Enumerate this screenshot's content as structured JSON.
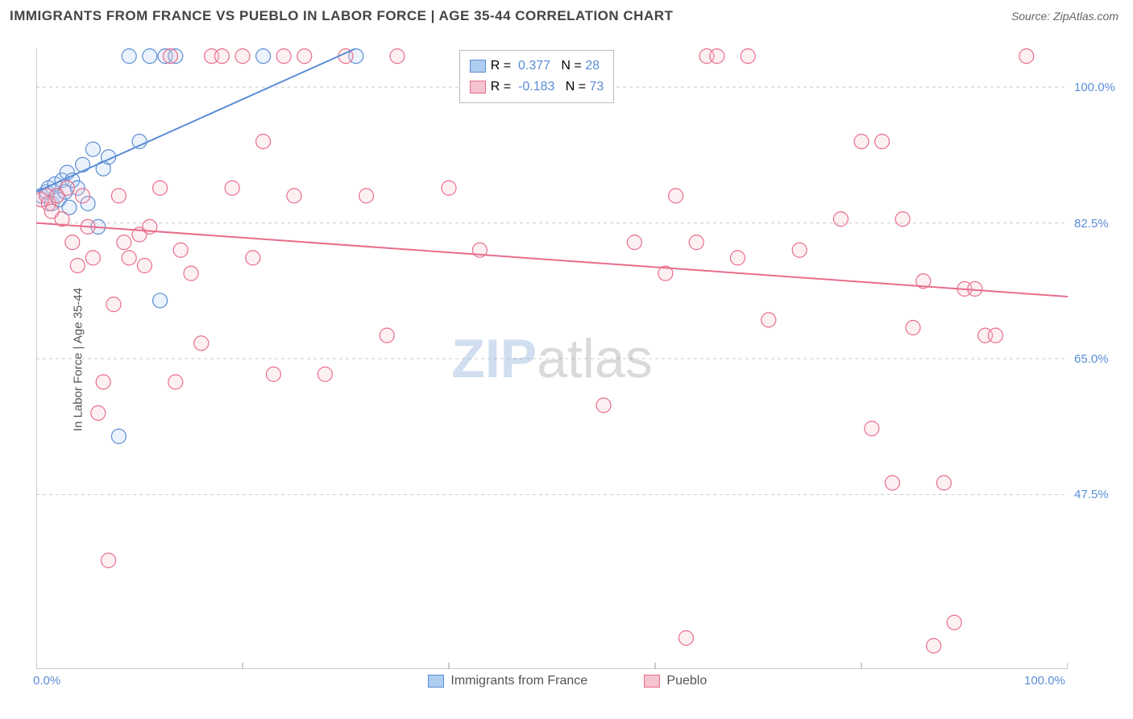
{
  "title": "IMMIGRANTS FROM FRANCE VS PUEBLO IN LABOR FORCE | AGE 35-44 CORRELATION CHART",
  "source": "Source: ZipAtlas.com",
  "y_axis_label": "In Labor Force | Age 35-44",
  "watermark_zip": "ZIP",
  "watermark_atlas": "atlas",
  "chart": {
    "type": "scatter",
    "background_color": "#ffffff",
    "grid_color": "#cccccc",
    "grid_dash": "4,4",
    "axis_color": "#999999",
    "text_color": "#555555",
    "tick_label_color": "#5a8dd6",
    "title_fontsize": 17,
    "label_fontsize": 15,
    "tick_fontsize": 15,
    "legend_fontsize": 16,
    "xlim": [
      0,
      100
    ],
    "ylim": [
      25,
      105
    ],
    "x_ticks": [
      0,
      20,
      40,
      60,
      80,
      100
    ],
    "x_tick_labels": {
      "0": "0.0%",
      "100": "100.0%"
    },
    "y_grid_lines": [
      47.5,
      65.0,
      82.5,
      100.0
    ],
    "y_tick_labels": {
      "47.5": "47.5%",
      "65.0": "65.0%",
      "82.5": "82.5%",
      "100.0": "100.0%"
    },
    "marker_radius": 9,
    "marker_stroke_width": 1.2,
    "marker_fill_opacity": 0.25,
    "trend_line_width": 2,
    "series": [
      {
        "name": "Immigrants from France",
        "color": "#5a8dd6",
        "fill": "#aecdf0",
        "R": 0.377,
        "N": 28,
        "trend": {
          "x1": 0,
          "y1": 86.5,
          "x2": 31,
          "y2": 105
        },
        "points": [
          [
            0.5,
            86
          ],
          [
            1,
            86.5
          ],
          [
            1.2,
            87
          ],
          [
            1.5,
            85
          ],
          [
            1.8,
            87.5
          ],
          [
            2,
            86
          ],
          [
            2.2,
            85.5
          ],
          [
            2.5,
            88
          ],
          [
            2.8,
            86.5
          ],
          [
            3,
            89
          ],
          [
            3.2,
            84.5
          ],
          [
            3.5,
            88
          ],
          [
            4,
            87
          ],
          [
            4.5,
            90
          ],
          [
            5,
            85
          ],
          [
            5.5,
            92
          ],
          [
            6,
            82
          ],
          [
            6.5,
            89.5
          ],
          [
            7,
            91
          ],
          [
            8,
            55
          ],
          [
            9,
            104
          ],
          [
            10,
            93
          ],
          [
            11,
            104
          ],
          [
            12,
            72.5
          ],
          [
            12.5,
            104
          ],
          [
            13.5,
            104
          ],
          [
            22,
            104
          ],
          [
            31,
            104
          ]
        ]
      },
      {
        "name": "Pueblo",
        "color": "#e86d8a",
        "fill": "#f6c3d0",
        "R": -0.183,
        "N": 73,
        "trend": {
          "x1": 0,
          "y1": 82.5,
          "x2": 100,
          "y2": 73
        },
        "points": [
          [
            0.5,
            85.5
          ],
          [
            1,
            86
          ],
          [
            1.2,
            85
          ],
          [
            1.5,
            84
          ],
          [
            2,
            86
          ],
          [
            2.5,
            83
          ],
          [
            3,
            87
          ],
          [
            3.5,
            80
          ],
          [
            4,
            77
          ],
          [
            4.5,
            86
          ],
          [
            5,
            82
          ],
          [
            5.5,
            78
          ],
          [
            6,
            58
          ],
          [
            6.5,
            62
          ],
          [
            7,
            39
          ],
          [
            7.5,
            72
          ],
          [
            8,
            86
          ],
          [
            8.5,
            80
          ],
          [
            9,
            78
          ],
          [
            10,
            81
          ],
          [
            10.5,
            77
          ],
          [
            11,
            82
          ],
          [
            12,
            87
          ],
          [
            13,
            104
          ],
          [
            13.5,
            62
          ],
          [
            14,
            79
          ],
          [
            15,
            76
          ],
          [
            16,
            67
          ],
          [
            17,
            104
          ],
          [
            18,
            104
          ],
          [
            19,
            87
          ],
          [
            20,
            104
          ],
          [
            21,
            78
          ],
          [
            22,
            93
          ],
          [
            23,
            63
          ],
          [
            24,
            104
          ],
          [
            25,
            86
          ],
          [
            26,
            104
          ],
          [
            28,
            63
          ],
          [
            30,
            104
          ],
          [
            32,
            86
          ],
          [
            34,
            68
          ],
          [
            35,
            104
          ],
          [
            40,
            87
          ],
          [
            43,
            79
          ],
          [
            55,
            59
          ],
          [
            58,
            80
          ],
          [
            61,
            76
          ],
          [
            62,
            86
          ],
          [
            63,
            29
          ],
          [
            64,
            80
          ],
          [
            65,
            104
          ],
          [
            66,
            104
          ],
          [
            68,
            78
          ],
          [
            69,
            104
          ],
          [
            71,
            70
          ],
          [
            74,
            79
          ],
          [
            78,
            83
          ],
          [
            80,
            93
          ],
          [
            81,
            56
          ],
          [
            82,
            93
          ],
          [
            83,
            49
          ],
          [
            84,
            83
          ],
          [
            85,
            69
          ],
          [
            86,
            75
          ],
          [
            87,
            28
          ],
          [
            88,
            49
          ],
          [
            89,
            31
          ],
          [
            90,
            74
          ],
          [
            91,
            74
          ],
          [
            92,
            68
          ],
          [
            93,
            68
          ],
          [
            96,
            104
          ]
        ]
      }
    ]
  },
  "stats_legend": {
    "rows": [
      {
        "swatch_fill": "#aecdf0",
        "swatch_stroke": "#5a8dd6",
        "r_label": "R =",
        "r_value": "0.377",
        "n_label": "N =",
        "n_value": "28"
      },
      {
        "swatch_fill": "#f6c3d0",
        "swatch_stroke": "#e86d8a",
        "r_label": "R =",
        "r_value": "-0.183",
        "n_label": "N =",
        "n_value": "73"
      }
    ],
    "value_color": "#5a8dd6"
  },
  "bottom_legend": [
    {
      "swatch_fill": "#aecdf0",
      "swatch_stroke": "#5a8dd6",
      "label": "Immigrants from France"
    },
    {
      "swatch_fill": "#f6c3d0",
      "swatch_stroke": "#e86d8a",
      "label": "Pueblo"
    }
  ]
}
